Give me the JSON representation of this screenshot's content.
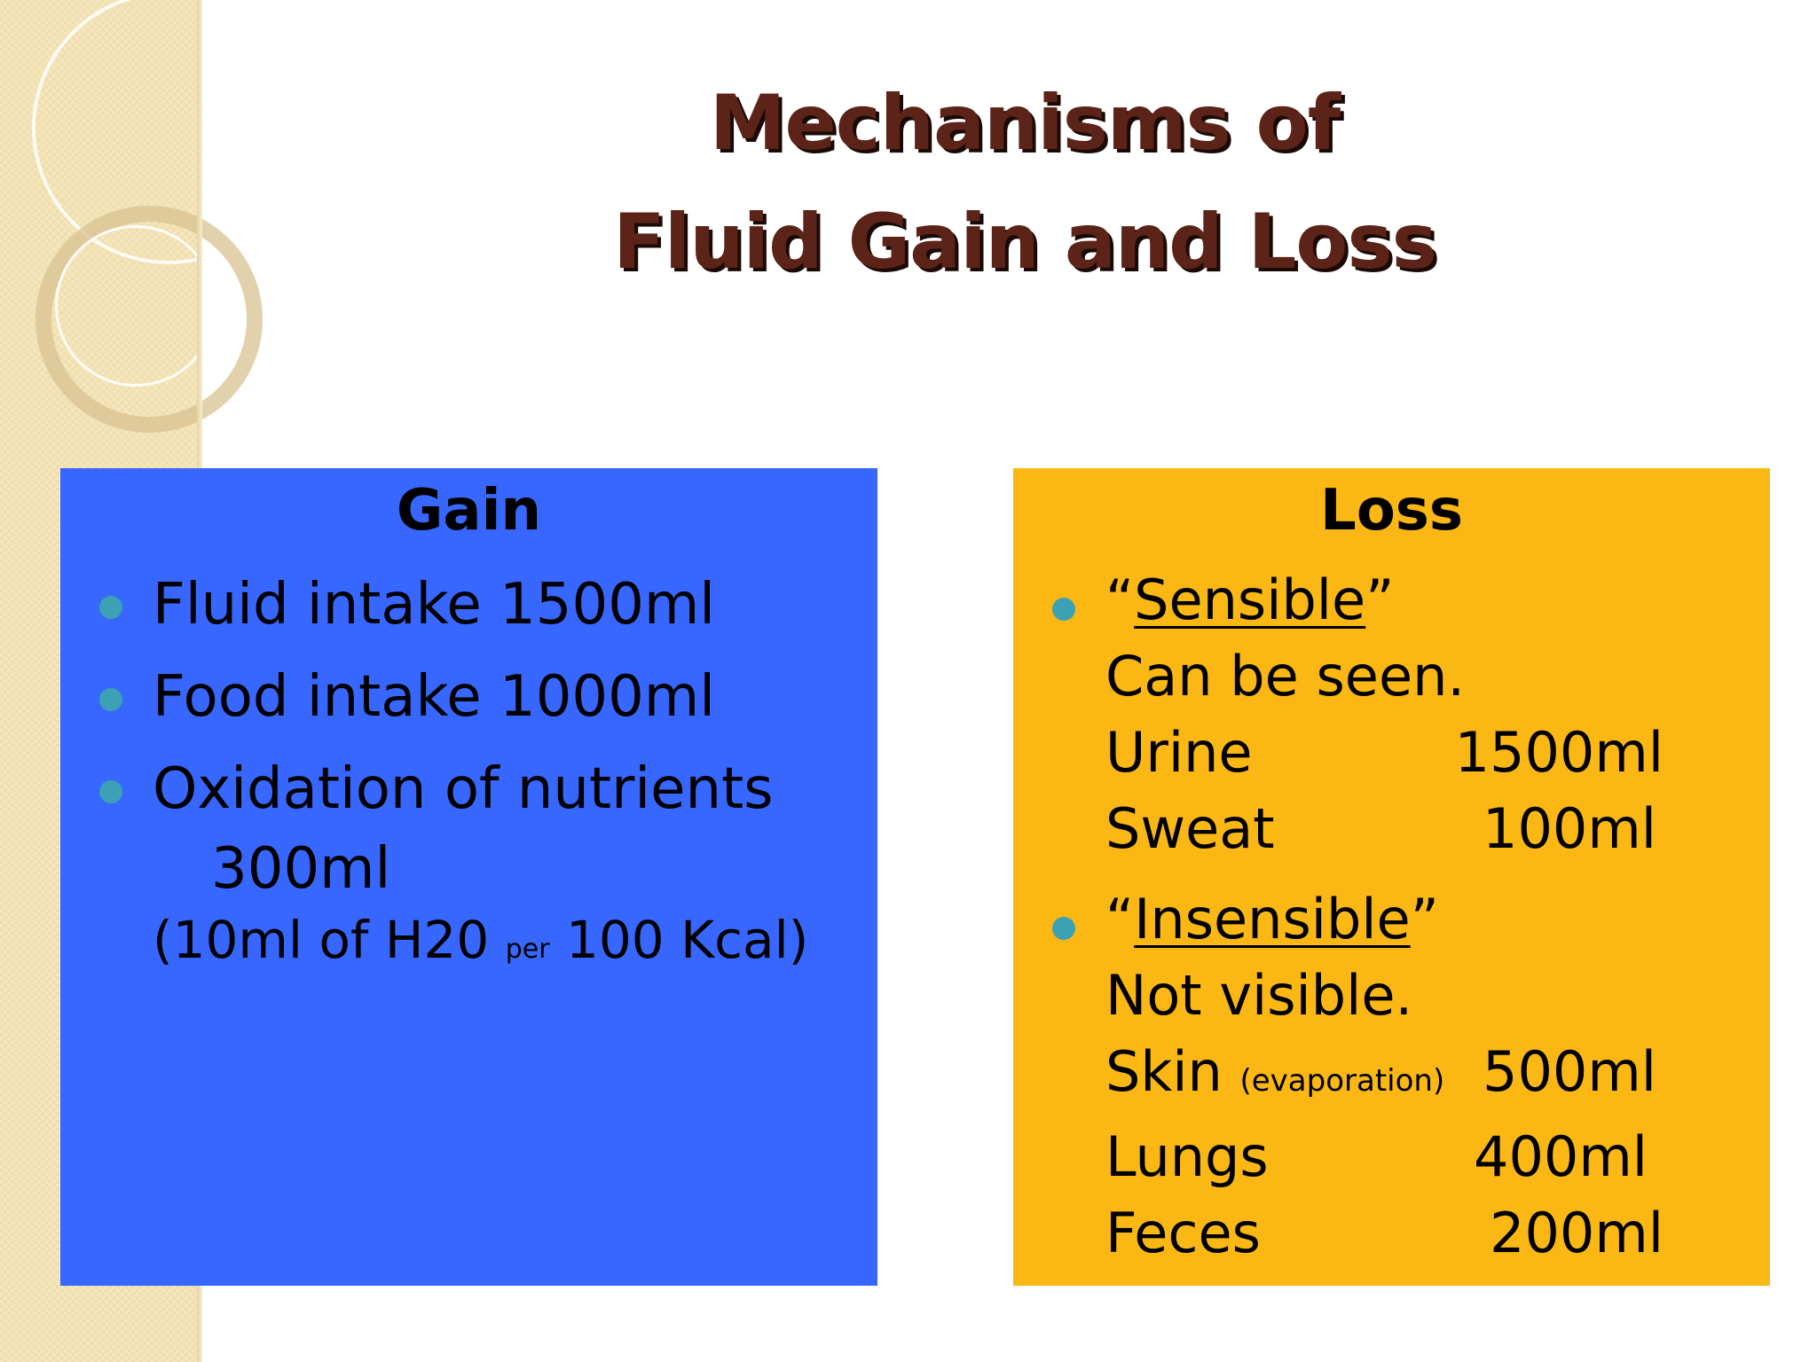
{
  "title": {
    "line1": "Mechanisms of",
    "line2": "Fluid Gain and Loss"
  },
  "gain": {
    "heading": "Gain",
    "items": [
      {
        "text": "Fluid intake 1500ml"
      },
      {
        "text": "Food intake 1000ml"
      },
      {
        "line1": "Oxidation of nutrients",
        "line2": "300ml",
        "note_start": "(10ml of H20",
        "note_per": "per",
        "note_end": "100 Kcal)"
      }
    ]
  },
  "loss": {
    "heading": "Loss",
    "sensible": {
      "open_quote": "“",
      "label": "Sensible",
      "close_quote": "”",
      "description": "Can be seen.",
      "rows": [
        {
          "name": "Urine",
          "amount": "1500ml"
        },
        {
          "name": "Sweat",
          "amount": "100ml"
        }
      ]
    },
    "insensible": {
      "open_quote": "“",
      "label": "Insensible",
      "close_quote": "”",
      "description": "Not visible.",
      "rows": [
        {
          "name": "Skin",
          "detail": "(evaporation)",
          "amount": "500ml"
        },
        {
          "name": "Lungs",
          "amount": "400ml"
        },
        {
          "name": "Feces",
          "amount": "200ml"
        }
      ]
    }
  },
  "colors": {
    "gain_panel": "#3767fe",
    "loss_panel": "#fbb714",
    "title_text": "#5c2318",
    "bullet": "#3ca1b4"
  }
}
